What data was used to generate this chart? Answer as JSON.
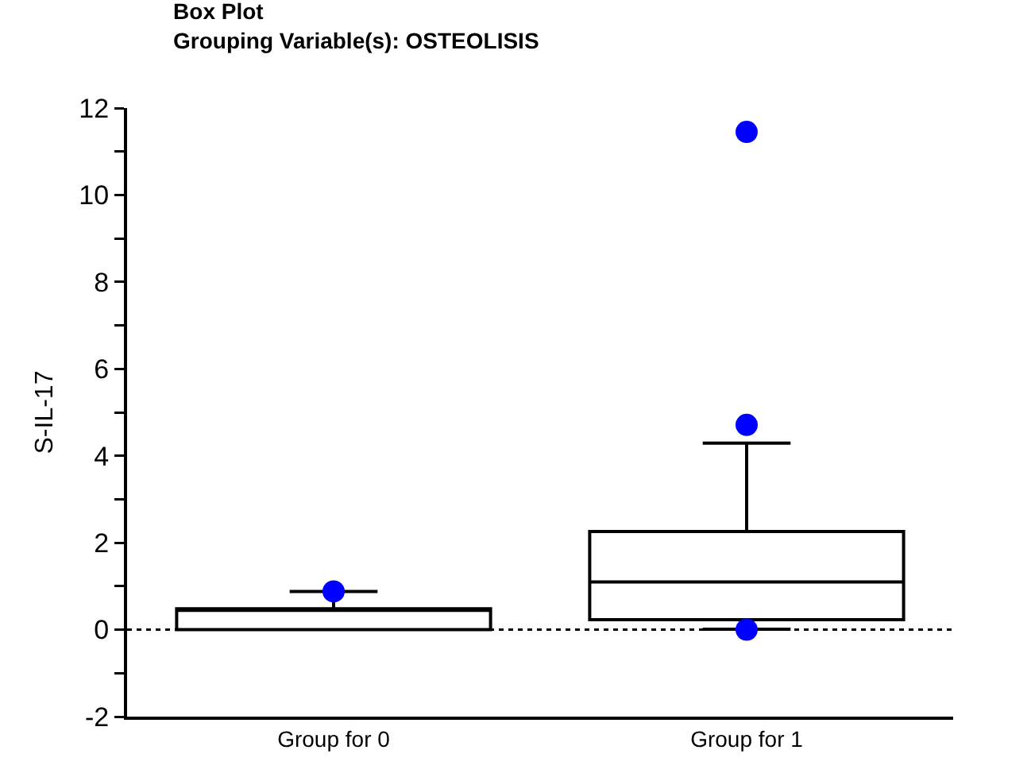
{
  "chart_data": {
    "type": "box",
    "title": "Box Plot",
    "subtitle": "Grouping Variable(s): OSTEOLISIS",
    "ylabel": "S-IL-17",
    "categories": [
      "Group for 0",
      "Group for 1"
    ],
    "ylim": [
      -2,
      12
    ],
    "yticks": [
      -2,
      {
        "value": -1,
        "label": null
      },
      0,
      {
        "value": 1,
        "label": null
      },
      2,
      {
        "value": 3,
        "label": null
      },
      4,
      {
        "value": 5,
        "label": null
      },
      6,
      {
        "value": 7,
        "label": null
      },
      8,
      {
        "value": 9,
        "label": null
      },
      10,
      {
        "value": 11,
        "label": null
      },
      12
    ],
    "grid": false,
    "legend": false,
    "marker": "circle",
    "ref_lines": [
      {
        "axis": "y",
        "value": 0,
        "color": "#000000",
        "line_style": "dotted"
      }
    ],
    "series": [
      {
        "color": "#000000",
        "boxes": [
          {
            "low": 0,
            "q1": 0,
            "median": 0.45,
            "q3": 0.48,
            "high": 0.88
          },
          {
            "low": 0.01,
            "q1": 0.23,
            "median": 1.1,
            "q3": 2.26,
            "high": 4.29
          }
        ]
      },
      {
        "type": "scatter",
        "color": "#0000ff",
        "x": [
          "Group for 0",
          "Group for 1",
          "Group for 1",
          "Group for 1"
        ],
        "values": [
          0.88,
          4.71,
          11.45,
          0
        ]
      }
    ]
  }
}
